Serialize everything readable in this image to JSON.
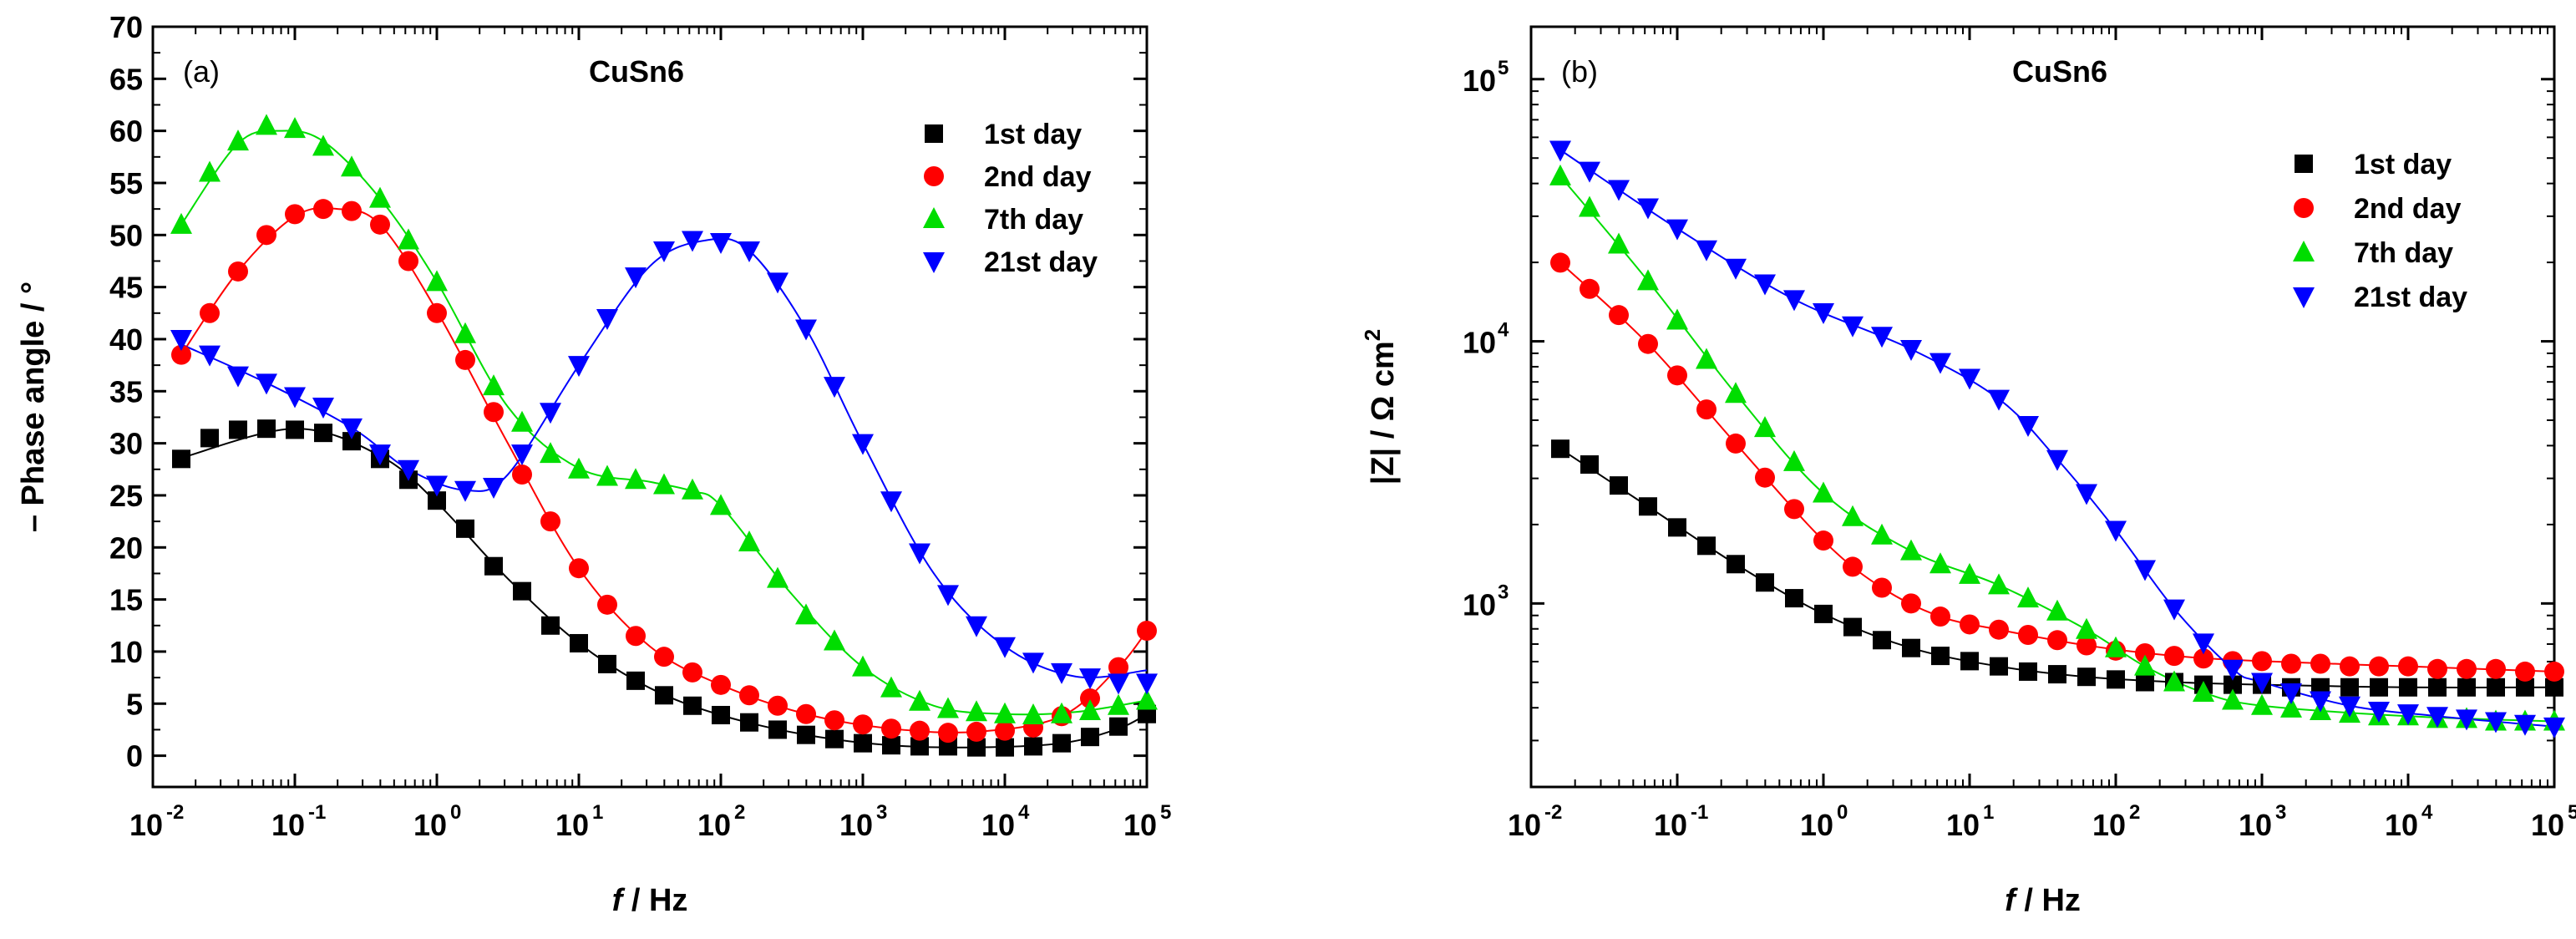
{
  "chart_data": [
    {
      "type": "scatter",
      "panel_label": "(a)",
      "title": "CuSn6",
      "xlabel": "f / Hz",
      "xlabel_italic": "f",
      "xlabel_rest": " / Hz",
      "ylabel": "– Phase angle / °",
      "xscale": "log",
      "yscale": "linear",
      "xlim_exp": [
        -2,
        5
      ],
      "ylim": [
        -3,
        70
      ],
      "x_tick_base": "10",
      "x_tick_exps": [
        "-2",
        "-1",
        "0",
        "1",
        "2",
        "3",
        "4",
        "5"
      ],
      "y_ticks": [
        0,
        5,
        10,
        15,
        20,
        25,
        30,
        35,
        40,
        45,
        50,
        55,
        60,
        65,
        70
      ],
      "legend_position": "top-right",
      "series": [
        {
          "name": "1st day",
          "color": "#000000",
          "marker": "square",
          "log_x": [
            -1.8,
            -1.6,
            -1.4,
            -1.2,
            -1.0,
            -0.8,
            -0.6,
            -0.4,
            -0.2,
            0.0,
            0.2,
            0.4,
            0.6,
            0.8,
            1.0,
            1.2,
            1.4,
            1.6,
            1.8,
            2.0,
            2.2,
            2.4,
            2.6,
            2.8,
            3.0,
            3.2,
            3.4,
            3.6,
            3.8,
            4.0,
            4.2,
            4.4,
            4.6,
            4.8,
            5.0
          ],
          "y": [
            28.5,
            30.5,
            31.3,
            31.4,
            31.3,
            31.0,
            30.2,
            28.5,
            26.5,
            24.5,
            21.8,
            18.2,
            15.8,
            12.5,
            10.8,
            8.8,
            7.2,
            5.8,
            4.8,
            3.9,
            3.2,
            2.5,
            2.0,
            1.6,
            1.2,
            1.0,
            0.9,
            0.9,
            0.8,
            0.8,
            0.9,
            1.2,
            1.8,
            2.8,
            4.0
          ]
        },
        {
          "name": "2nd day",
          "color": "#ff0000",
          "marker": "circle",
          "log_x": [
            -1.8,
            -1.6,
            -1.4,
            -1.2,
            -1.0,
            -0.8,
            -0.6,
            -0.4,
            -0.2,
            0.0,
            0.2,
            0.4,
            0.6,
            0.8,
            1.0,
            1.2,
            1.4,
            1.6,
            1.8,
            2.0,
            2.2,
            2.4,
            2.6,
            2.8,
            3.0,
            3.2,
            3.4,
            3.6,
            3.8,
            4.0,
            4.2,
            4.4,
            4.6,
            4.8,
            5.0
          ],
          "y": [
            38.5,
            42.5,
            46.5,
            50.0,
            52.0,
            52.5,
            52.3,
            51.0,
            47.5,
            42.5,
            38.0,
            33.0,
            27.0,
            22.5,
            18.0,
            14.5,
            11.5,
            9.5,
            8.0,
            6.8,
            5.8,
            4.8,
            4.0,
            3.4,
            3.0,
            2.6,
            2.4,
            2.2,
            2.3,
            2.4,
            2.7,
            3.8,
            5.5,
            8.5,
            12.0
          ]
        },
        {
          "name": "7th day",
          "color": "#00dd00",
          "marker": "triangle-up",
          "log_x": [
            -1.8,
            -1.6,
            -1.4,
            -1.2,
            -1.0,
            -0.8,
            -0.6,
            -0.4,
            -0.2,
            0.0,
            0.2,
            0.4,
            0.6,
            0.8,
            1.0,
            1.2,
            1.4,
            1.6,
            1.8,
            2.0,
            2.2,
            2.4,
            2.6,
            2.8,
            3.0,
            3.2,
            3.4,
            3.6,
            3.8,
            4.0,
            4.2,
            4.4,
            4.6,
            4.8,
            5.0
          ],
          "y": [
            51.0,
            56.0,
            59.0,
            60.5,
            60.2,
            58.5,
            56.5,
            53.5,
            49.5,
            45.5,
            40.5,
            35.5,
            32.0,
            29.0,
            27.5,
            26.8,
            26.5,
            26.0,
            25.5,
            24.0,
            20.5,
            17.0,
            13.5,
            11.0,
            8.5,
            6.5,
            5.2,
            4.5,
            4.2,
            4.0,
            3.9,
            4.0,
            4.3,
            4.8,
            5.3
          ]
        },
        {
          "name": "21st day",
          "color": "#0000ff",
          "marker": "triangle-down",
          "log_x": [
            -1.8,
            -1.6,
            -1.4,
            -1.2,
            -1.0,
            -0.8,
            -0.6,
            -0.4,
            -0.2,
            0.0,
            0.2,
            0.4,
            0.6,
            0.8,
            1.0,
            1.2,
            1.4,
            1.6,
            1.8,
            2.0,
            2.2,
            2.4,
            2.6,
            2.8,
            3.0,
            3.2,
            3.4,
            3.6,
            3.8,
            4.0,
            4.2,
            4.4,
            4.6,
            4.8,
            5.0
          ],
          "y": [
            40.0,
            38.5,
            36.5,
            35.8,
            34.5,
            33.5,
            31.5,
            29.0,
            27.5,
            26.0,
            25.5,
            25.8,
            29.0,
            33.0,
            37.5,
            42.0,
            46.0,
            48.5,
            49.5,
            49.3,
            48.5,
            45.5,
            41.0,
            35.5,
            30.0,
            24.5,
            19.5,
            15.5,
            12.5,
            10.5,
            9.0,
            8.0,
            7.5,
            7.0,
            7.0
          ]
        }
      ],
      "fit_lines": [
        {
          "color": "#000000",
          "log_x": [
            -1.8,
            -1.0,
            -0.4,
            0.0,
            0.5,
            1.0,
            1.5,
            2.0,
            2.6,
            3.2,
            3.8,
            4.4,
            4.8,
            5.0
          ],
          "y": [
            28.6,
            31.4,
            28.8,
            24.3,
            17.0,
            10.8,
            6.5,
            3.9,
            2.0,
            1.0,
            0.8,
            1.2,
            2.6,
            4.0
          ]
        },
        {
          "color": "#ff0000",
          "log_x": [
            -1.8,
            -1.4,
            -1.0,
            -0.7,
            -0.4,
            0.0,
            0.5,
            1.0,
            1.5,
            2.0,
            2.6,
            3.2,
            3.8,
            4.4,
            4.8,
            5.0
          ],
          "y": [
            38.5,
            46.5,
            51.8,
            52.5,
            51.0,
            42.7,
            30.0,
            18.0,
            10.5,
            6.8,
            4.0,
            2.6,
            2.3,
            3.8,
            8.5,
            12.0
          ]
        },
        {
          "color": "#00dd00",
          "log_x": [
            -1.8,
            -1.4,
            -1.1,
            -0.8,
            -0.4,
            0.0,
            0.5,
            1.0,
            1.5,
            1.8,
            2.0,
            2.5,
            3.0,
            3.5,
            4.0,
            4.5,
            5.0
          ],
          "y": [
            51.0,
            58.8,
            60.0,
            59.0,
            53.5,
            45.5,
            33.5,
            27.6,
            26.3,
            25.4,
            24.0,
            15.5,
            8.5,
            4.8,
            4.0,
            4.2,
            5.3
          ]
        },
        {
          "color": "#0000ff",
          "log_x": [
            -1.8,
            -1.2,
            -0.6,
            -0.2,
            0.2,
            0.5,
            1.0,
            1.5,
            1.9,
            2.2,
            2.6,
            3.0,
            3.5,
            4.0,
            4.5,
            5.0
          ],
          "y": [
            39.5,
            35.8,
            31.5,
            27.5,
            25.5,
            27.0,
            37.5,
            47.0,
            49.5,
            48.5,
            41.0,
            30.0,
            17.5,
            10.5,
            7.6,
            8.2
          ]
        }
      ]
    },
    {
      "type": "scatter",
      "panel_label": "(b)",
      "title": "CuSn6",
      "xlabel": "f / Hz",
      "xlabel_italic": "f",
      "xlabel_rest": " / Hz",
      "ylabel": "|Z| / Ω cm²",
      "ylabel_main": "|Z| / Ω cm",
      "ylabel_sup": "2",
      "xscale": "log",
      "yscale": "log",
      "xlim_exp": [
        -2,
        5
      ],
      "ylim_exp": [
        2.3,
        5.2
      ],
      "x_tick_base": "10",
      "x_tick_exps": [
        "-2",
        "-1",
        "0",
        "1",
        "2",
        "3",
        "4",
        "5"
      ],
      "y_tick_base": "10",
      "y_tick_exps": [
        "3",
        "4",
        "5"
      ],
      "legend_position": "top-right",
      "series": [
        {
          "name": "1st day",
          "color": "#000000",
          "marker": "square",
          "log_x": [
            -1.8,
            -1.6,
            -1.4,
            -1.2,
            -1.0,
            -0.8,
            -0.6,
            -0.4,
            -0.2,
            0.0,
            0.2,
            0.4,
            0.6,
            0.8,
            1.0,
            1.2,
            1.4,
            1.6,
            1.8,
            2.0,
            2.2,
            2.4,
            2.6,
            2.8,
            3.0,
            3.2,
            3.4,
            3.6,
            3.8,
            4.0,
            4.2,
            4.4,
            4.6,
            4.8,
            5.0
          ],
          "log_y": [
            3.59,
            3.53,
            3.45,
            3.37,
            3.29,
            3.22,
            3.15,
            3.08,
            3.02,
            2.96,
            2.91,
            2.86,
            2.83,
            2.8,
            2.78,
            2.76,
            2.74,
            2.73,
            2.72,
            2.71,
            2.7,
            2.7,
            2.69,
            2.69,
            2.69,
            2.68,
            2.68,
            2.68,
            2.68,
            2.68,
            2.68,
            2.68,
            2.68,
            2.68,
            2.68
          ]
        },
        {
          "name": "2nd day",
          "color": "#ff0000",
          "marker": "circle",
          "log_x": [
            -1.8,
            -1.6,
            -1.4,
            -1.2,
            -1.0,
            -0.8,
            -0.6,
            -0.4,
            -0.2,
            0.0,
            0.2,
            0.4,
            0.6,
            0.8,
            1.0,
            1.2,
            1.4,
            1.6,
            1.8,
            2.0,
            2.2,
            2.4,
            2.6,
            2.8,
            3.0,
            3.2,
            3.4,
            3.6,
            3.8,
            4.0,
            4.2,
            4.4,
            4.6,
            4.8,
            5.0
          ],
          "log_y": [
            4.3,
            4.2,
            4.1,
            3.99,
            3.87,
            3.74,
            3.61,
            3.48,
            3.36,
            3.24,
            3.14,
            3.06,
            3.0,
            2.95,
            2.92,
            2.9,
            2.88,
            2.86,
            2.84,
            2.82,
            2.81,
            2.8,
            2.79,
            2.78,
            2.78,
            2.77,
            2.77,
            2.76,
            2.76,
            2.76,
            2.75,
            2.75,
            2.75,
            2.74,
            2.74
          ]
        },
        {
          "name": "7th day",
          "color": "#00dd00",
          "marker": "triangle-up",
          "log_x": [
            -1.8,
            -1.6,
            -1.4,
            -1.2,
            -1.0,
            -0.8,
            -0.6,
            -0.4,
            -0.2,
            0.0,
            0.2,
            0.4,
            0.6,
            0.8,
            1.0,
            1.2,
            1.4,
            1.6,
            1.8,
            2.0,
            2.2,
            2.4,
            2.6,
            2.8,
            3.0,
            3.2,
            3.4,
            3.6,
            3.8,
            4.0,
            4.2,
            4.4,
            4.6,
            4.8,
            5.0
          ],
          "log_y": [
            4.63,
            4.51,
            4.37,
            4.23,
            4.08,
            3.93,
            3.8,
            3.67,
            3.54,
            3.42,
            3.33,
            3.26,
            3.2,
            3.15,
            3.11,
            3.07,
            3.02,
            2.97,
            2.9,
            2.83,
            2.76,
            2.7,
            2.66,
            2.63,
            2.61,
            2.6,
            2.59,
            2.58,
            2.57,
            2.57,
            2.56,
            2.56,
            2.55,
            2.55,
            2.55
          ]
        },
        {
          "name": "21st day",
          "color": "#0000ff",
          "marker": "triangle-down",
          "log_x": [
            -1.8,
            -1.6,
            -1.4,
            -1.2,
            -1.0,
            -0.8,
            -0.6,
            -0.4,
            -0.2,
            0.0,
            0.2,
            0.4,
            0.6,
            0.8,
            1.0,
            1.2,
            1.4,
            1.6,
            1.8,
            2.0,
            2.2,
            2.4,
            2.6,
            2.8,
            3.0,
            3.2,
            3.4,
            3.6,
            3.8,
            4.0,
            4.2,
            4.4,
            4.6,
            4.8,
            5.0
          ],
          "log_y": [
            4.73,
            4.65,
            4.58,
            4.51,
            4.43,
            4.35,
            4.28,
            4.22,
            4.16,
            4.11,
            4.06,
            4.02,
            3.97,
            3.92,
            3.86,
            3.78,
            3.68,
            3.55,
            3.42,
            3.28,
            3.13,
            2.98,
            2.85,
            2.75,
            2.7,
            2.66,
            2.63,
            2.61,
            2.59,
            2.58,
            2.57,
            2.56,
            2.55,
            2.54,
            2.53
          ]
        }
      ],
      "fit_lines": [
        {
          "color": "#000000",
          "log_x": [
            -1.8,
            -1.2,
            -0.6,
            0.0,
            0.6,
            1.2,
            1.8,
            2.4,
            3.0,
            4.0,
            5.0
          ],
          "log_y": [
            3.59,
            3.37,
            3.15,
            2.96,
            2.83,
            2.76,
            2.72,
            2.7,
            2.69,
            2.68,
            2.68
          ]
        },
        {
          "color": "#ff0000",
          "log_x": [
            -1.8,
            -1.2,
            -0.6,
            0.0,
            0.4,
            0.8,
            1.2,
            1.8,
            2.4,
            3.0,
            4.0,
            5.0
          ],
          "log_y": [
            4.3,
            3.99,
            3.61,
            3.24,
            3.06,
            2.95,
            2.9,
            2.84,
            2.8,
            2.78,
            2.76,
            2.74
          ]
        },
        {
          "color": "#00dd00",
          "log_x": [
            -1.8,
            -1.2,
            -0.6,
            0.0,
            0.6,
            1.2,
            1.8,
            2.2,
            2.6,
            3.0,
            4.0,
            5.0
          ],
          "log_y": [
            4.63,
            4.23,
            3.8,
            3.42,
            3.2,
            3.07,
            2.9,
            2.76,
            2.66,
            2.61,
            2.57,
            2.55
          ]
        },
        {
          "color": "#0000ff",
          "log_x": [
            -1.8,
            -1.0,
            -0.2,
            0.6,
            1.2,
            1.6,
            2.0,
            2.4,
            2.8,
            3.0,
            3.6,
            4.2,
            5.0
          ],
          "log_y": [
            4.73,
            4.43,
            4.16,
            3.97,
            3.78,
            3.55,
            3.28,
            2.98,
            2.75,
            2.7,
            2.61,
            2.57,
            2.53
          ]
        }
      ]
    }
  ]
}
